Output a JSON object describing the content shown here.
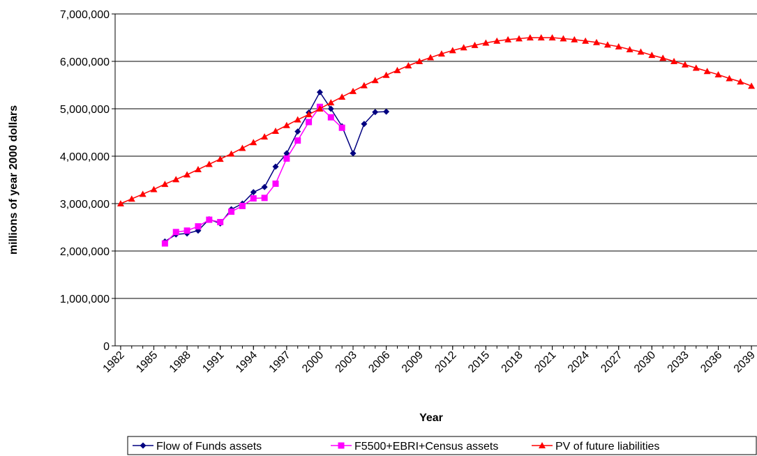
{
  "chart_data": {
    "type": "line",
    "x_label": "Year",
    "y_label": "millions of year 2000 dollars",
    "x": [
      1982,
      1983,
      1984,
      1985,
      1986,
      1987,
      1988,
      1989,
      1990,
      1991,
      1992,
      1993,
      1994,
      1995,
      1996,
      1997,
      1998,
      1999,
      2000,
      2001,
      2002,
      2003,
      2004,
      2005,
      2006,
      2007,
      2008,
      2009,
      2010,
      2011,
      2012,
      2013,
      2014,
      2015,
      2016,
      2017,
      2018,
      2019,
      2020,
      2021,
      2022,
      2023,
      2024,
      2025,
      2026,
      2027,
      2028,
      2029,
      2030,
      2031,
      2032,
      2033,
      2034,
      2035,
      2036,
      2037,
      2038,
      2039
    ],
    "series": [
      {
        "name": "Flow of Funds assets",
        "color": "#000080",
        "marker": "diamond",
        "values": [
          null,
          null,
          null,
          null,
          2200000,
          2350000,
          2370000,
          2430000,
          2670000,
          2580000,
          2880000,
          3000000,
          3240000,
          3350000,
          3780000,
          4060000,
          4520000,
          4920000,
          5350000,
          5000000,
          4630000,
          4060000,
          4680000,
          4930000,
          4940000,
          null,
          null,
          null,
          null,
          null,
          null,
          null,
          null,
          null,
          null,
          null,
          null,
          null,
          null,
          null,
          null,
          null,
          null,
          null,
          null,
          null,
          null,
          null,
          null,
          null,
          null,
          null,
          null,
          null,
          null,
          null,
          null,
          null
        ]
      },
      {
        "name": "F5500+EBRI+Census assets",
        "color": "#FF00FF",
        "marker": "square",
        "values": [
          null,
          null,
          null,
          null,
          2160000,
          2400000,
          2430000,
          2520000,
          2660000,
          2610000,
          2830000,
          2950000,
          3110000,
          3120000,
          3420000,
          3950000,
          4330000,
          4720000,
          5040000,
          4820000,
          4600000,
          null,
          null,
          null,
          null,
          null,
          null,
          null,
          null,
          null,
          null,
          null,
          null,
          null,
          null,
          null,
          null,
          null,
          null,
          null,
          null,
          null,
          null,
          null,
          null,
          null,
          null,
          null,
          null,
          null,
          null,
          null,
          null,
          null,
          null,
          null,
          null,
          null
        ]
      },
      {
        "name": "PV of future liabilities",
        "color": "#FF0000",
        "marker": "triangle",
        "values": [
          3000000,
          3100000,
          3200000,
          3300000,
          3410000,
          3510000,
          3610000,
          3720000,
          3830000,
          3940000,
          4050000,
          4170000,
          4290000,
          4410000,
          4530000,
          4650000,
          4770000,
          4880000,
          5000000,
          5130000,
          5250000,
          5370000,
          5490000,
          5600000,
          5710000,
          5810000,
          5910000,
          6000000,
          6080000,
          6160000,
          6230000,
          6290000,
          6340000,
          6390000,
          6430000,
          6460000,
          6480000,
          6500000,
          6500000,
          6500000,
          6480000,
          6460000,
          6430000,
          6400000,
          6350000,
          6310000,
          6250000,
          6200000,
          6130000,
          6070000,
          6000000,
          5930000,
          5860000,
          5790000,
          5720000,
          5640000,
          5570000,
          5480000
        ]
      }
    ],
    "xlim": [
      1981.5,
      2039.5
    ],
    "xticks": [
      1982,
      1985,
      1988,
      1991,
      1994,
      1997,
      2000,
      2003,
      2006,
      2009,
      2012,
      2015,
      2018,
      2021,
      2024,
      2027,
      2030,
      2033,
      2036,
      2039
    ],
    "ylim": [
      0,
      7000000
    ],
    "yticks": [
      0,
      {
        "value": 1000000,
        "label": "1,000,000"
      },
      {
        "value": 2000000,
        "label": "2,000,000"
      },
      {
        "value": 3000000,
        "label": "3,000,000"
      },
      {
        "value": 4000000,
        "label": "4,000,000"
      },
      {
        "value": 5000000,
        "label": "5,000,000"
      },
      {
        "value": 6000000,
        "label": "6,000,000"
      },
      {
        "value": 7000000,
        "label": "7,000,000"
      }
    ],
    "grid": true,
    "legend": "bottom"
  }
}
